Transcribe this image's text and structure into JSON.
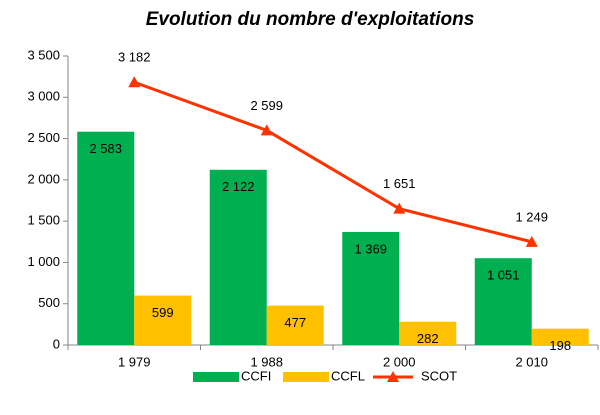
{
  "chart_data": {
    "type": "combo",
    "title": "Evolution du nombre d'exploitations",
    "categories": [
      "1 979",
      "1 988",
      "2 000",
      "2 010"
    ],
    "series": [
      {
        "name": "CCFI",
        "type": "bar",
        "color": "#00b050",
        "values": [
          2583,
          2122,
          1369,
          1051
        ],
        "value_labels": [
          "2 583",
          "2 122",
          "1 369",
          "1 051"
        ]
      },
      {
        "name": "CCFL",
        "type": "bar",
        "color": "#ffc000",
        "values": [
          599,
          477,
          282,
          198
        ]
      },
      {
        "name": "SCOT",
        "type": "line",
        "color": "#ff3300",
        "values": [
          3182,
          2599,
          1651,
          1249
        ],
        "value_labels": [
          "3 182",
          "2 599",
          "1 651",
          "1 249"
        ]
      }
    ],
    "ylim": [
      0,
      3500
    ],
    "yticks": [
      0,
      500,
      {
        "value": 1000,
        "label": "1 000"
      },
      {
        "value": 1500,
        "label": "1 500"
      },
      {
        "value": 2000,
        "label": "2 000"
      },
      {
        "value": 2500,
        "label": "2 500"
      },
      {
        "value": 3000,
        "label": "3 000"
      },
      {
        "value": 3500,
        "label": "3 500"
      }
    ],
    "grid": false,
    "legend": "bottom"
  }
}
